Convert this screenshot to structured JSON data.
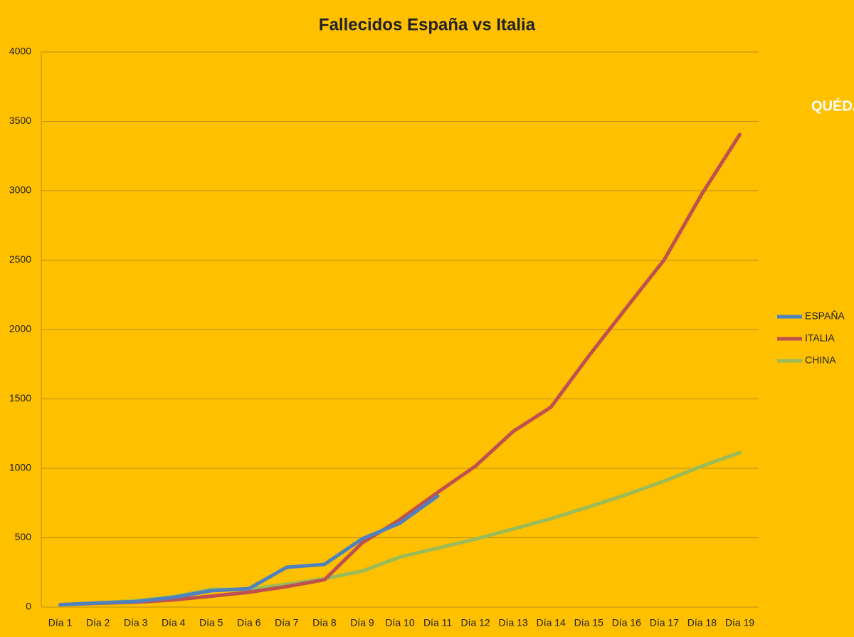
{
  "chart_data": {
    "type": "line",
    "title": "Fallecidos España vs Italia",
    "annotation": "QUÉDAT",
    "categories": [
      "Día 1",
      "Día 2",
      "Día 3",
      "Día 4",
      "Día 5",
      "Día 6",
      "Día 7",
      "Día 8",
      "Día 9",
      "Día 10",
      "Día 11",
      "Día 12",
      "Día 13",
      "Día 14",
      "Día 15",
      "Día 16",
      "Día 17",
      "Día 18",
      "Día 19"
    ],
    "series": [
      {
        "name": "ESPAÑA",
        "color": "#4f81bd",
        "values": [
          17,
          30,
          40,
          70,
          118,
          133,
          287,
          308,
          492,
          605,
          800,
          null,
          null,
          null,
          null,
          null,
          null,
          null,
          null
        ]
      },
      {
        "name": "ITALIA",
        "color": "#c0504d",
        "values": [
          17,
          28,
          35,
          52,
          79,
          107,
          148,
          197,
          463,
          631,
          827,
          1016,
          1266,
          1441,
          1809,
          2158,
          2503,
          2978,
          3405
        ]
      },
      {
        "name": "CHINA",
        "color": "#9bbb59",
        "values": [
          17,
          30,
          45,
          75,
          128,
          128,
          165,
          205,
          259,
          361,
          425,
          490,
          563,
          637,
          722,
          811,
          908,
          1016,
          1113
        ]
      }
    ],
    "ylim": [
      0,
      4000
    ],
    "yticks": [
      0,
      500,
      1000,
      1500,
      2000,
      2500,
      3000,
      3500,
      4000
    ],
    "grid": true,
    "legend": "right"
  }
}
